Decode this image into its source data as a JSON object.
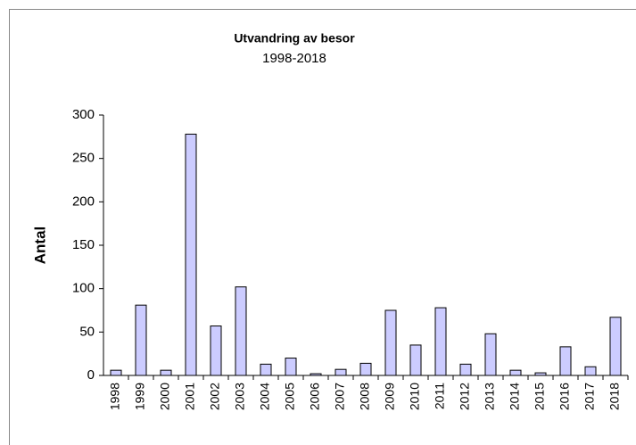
{
  "chart_data": {
    "type": "bar",
    "title": "Utvandring av besor",
    "subtitle": "1998-2018",
    "y_label": "Antal",
    "categories": [
      "1998",
      "1999",
      "2000",
      "2001",
      "2002",
      "2003",
      "2004",
      "2005",
      "2006",
      "2007",
      "2008",
      "2009",
      "2010",
      "2011",
      "2012",
      "2013",
      "2014",
      "2015",
      "2016",
      "2017",
      "2018"
    ],
    "values": [
      6,
      81,
      6,
      278,
      57,
      102,
      13,
      20,
      2,
      7,
      14,
      75,
      35,
      78,
      13,
      48,
      6,
      3,
      33,
      10,
      67
    ],
    "color": "#ccccff",
    "ylim": [
      0,
      300
    ],
    "yticks": [
      0,
      50,
      100,
      150,
      200,
      250,
      300
    ],
    "grid": false
  }
}
